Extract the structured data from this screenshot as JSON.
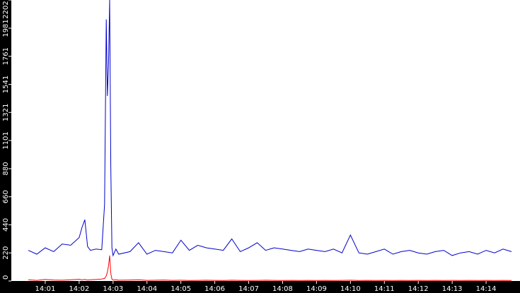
{
  "chart_data": {
    "type": "line",
    "title": "",
    "xlabel": "",
    "ylabel": "",
    "ylim": [
      0,
      2202
    ],
    "yticks": [
      "0",
      "220",
      "440",
      "660",
      "880",
      "1101",
      "1321",
      "1541",
      "1761",
      "1981",
      "2202"
    ],
    "xticks": [
      "14:01",
      "14:02",
      "14:03",
      "14:04",
      "14:05",
      "14:06",
      "14:07",
      "14:08",
      "14:09",
      "14:10",
      "14:11",
      "14:12",
      "14:13",
      "14:14"
    ],
    "x": [
      "14:00:30",
      "14:00:45",
      "14:01:00",
      "14:01:15",
      "14:01:30",
      "14:01:45",
      "14:02:00",
      "14:02:05",
      "14:02:10",
      "14:02:15",
      "14:02:20",
      "14:02:30",
      "14:02:40",
      "14:02:45",
      "14:02:48",
      "14:02:50",
      "14:02:52",
      "14:02:54",
      "14:02:56",
      "14:02:58",
      "14:03:00",
      "14:03:05",
      "14:03:10",
      "14:03:30",
      "14:03:45",
      "14:04:00",
      "14:04:15",
      "14:04:30",
      "14:04:45",
      "14:05:00",
      "14:05:15",
      "14:05:30",
      "14:05:45",
      "14:06:00",
      "14:06:15",
      "14:06:30",
      "14:06:45",
      "14:07:00",
      "14:07:15",
      "14:07:30",
      "14:07:45",
      "14:08:00",
      "14:08:15",
      "14:08:30",
      "14:08:45",
      "14:09:00",
      "14:09:15",
      "14:09:30",
      "14:09:45",
      "14:10:00",
      "14:10:15",
      "14:10:30",
      "14:10:45",
      "14:11:00",
      "14:11:15",
      "14:11:30",
      "14:11:45",
      "14:12:00",
      "14:12:15",
      "14:12:30",
      "14:12:45",
      "14:13:00",
      "14:13:15",
      "14:13:30",
      "14:13:45",
      "14:14:00",
      "14:14:15",
      "14:14:30",
      "14:14:45"
    ],
    "series": [
      {
        "color": "#0000cc",
        "values": [
          240,
          210,
          260,
          230,
          290,
          280,
          340,
          420,
          480,
          270,
          240,
          250,
          245,
          600,
          2050,
          1450,
          1700,
          2202,
          900,
          260,
          200,
          250,
          210,
          230,
          300,
          210,
          240,
          230,
          220,
          320,
          240,
          280,
          260,
          250,
          240,
          330,
          230,
          260,
          300,
          240,
          260,
          250,
          240,
          230,
          250,
          240,
          230,
          250,
          220,
          360,
          220,
          210,
          230,
          250,
          210,
          230,
          240,
          220,
          210,
          230,
          240,
          200,
          220,
          230,
          210,
          240,
          220,
          250,
          230
        ]
      },
      {
        "color": "#ff0000",
        "values": [
          10,
          5,
          12,
          8,
          6,
          10,
          14,
          9,
          12,
          8,
          10,
          12,
          15,
          20,
          40,
          70,
          120,
          200,
          60,
          15,
          8,
          10,
          6,
          8,
          10,
          5,
          6,
          8,
          5,
          6,
          4,
          5,
          6,
          5,
          4,
          6,
          5,
          4,
          5,
          6,
          5,
          4,
          5,
          4,
          5,
          4,
          5,
          4,
          5,
          6,
          4,
          5,
          4,
          5,
          4,
          5,
          4,
          5,
          4,
          5,
          4,
          5,
          4,
          5,
          4,
          5,
          4,
          5,
          4
        ]
      }
    ],
    "grid": false,
    "colors": {
      "axis_bg": "#000000",
      "plot_bg": "#ffffff",
      "tick_text": "#ffffff"
    }
  }
}
